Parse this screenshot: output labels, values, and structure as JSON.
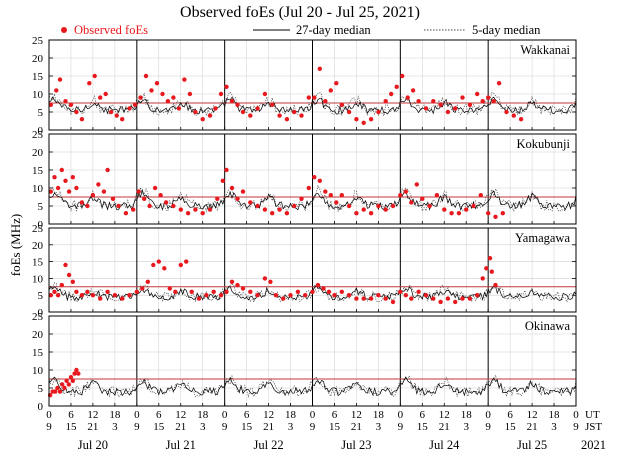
{
  "chart_data": {
    "type": "scatter",
    "title": "Observed foEs (Jul 20 - Jul 25, 2021)",
    "ylabel": "foEs (MHz)",
    "ylim": [
      0,
      25
    ],
    "yticks": [
      0,
      5,
      10,
      15,
      20,
      25
    ],
    "reference_line_mhz": 7.5,
    "legend": {
      "observed": "Observed foEs",
      "median27": "27-day median",
      "median5": "5-day median"
    },
    "colors": {
      "observed": "#e8191e",
      "median27": "#000000",
      "median5": "#444444",
      "reference": "#c0393b",
      "grid": "#cfcfcf",
      "day_line": "#000000"
    },
    "hours_range": [
      0,
      144
    ],
    "ut_tick_labels": [
      "0",
      "6",
      "12",
      "18",
      "0",
      "6",
      "12",
      "18",
      "0",
      "6",
      "12",
      "18",
      "0",
      "6",
      "12",
      "18",
      "0",
      "6",
      "12",
      "18",
      "0",
      "6",
      "12",
      "18",
      "0"
    ],
    "jst_tick_labels": [
      "9",
      "15",
      "21",
      "3",
      "9",
      "15",
      "21",
      "3",
      "9",
      "15",
      "21",
      "3",
      "9",
      "15",
      "21",
      "3",
      "9",
      "15",
      "21",
      "3",
      "9",
      "15",
      "21",
      "3",
      "9"
    ],
    "ut_label": "UT",
    "jst_label": "JST",
    "days": [
      "Jul 20",
      "Jul 21",
      "Jul 22",
      "Jul 23",
      "Jul 24",
      "Jul 25"
    ],
    "year": "2021",
    "stations": [
      {
        "name": "Wakkanai",
        "observed_hours": [
          0,
          144
        ],
        "median_base": 5.5,
        "median_amp": 3.0,
        "obs_points": [
          [
            0.5,
            7
          ],
          [
            2,
            11
          ],
          [
            3,
            14
          ],
          [
            4.5,
            8
          ],
          [
            6,
            7
          ],
          [
            7.5,
            5
          ],
          [
            9,
            3
          ],
          [
            11,
            13
          ],
          [
            12.5,
            15
          ],
          [
            14,
            9
          ],
          [
            15.5,
            10
          ],
          [
            17,
            5
          ],
          [
            18.5,
            4
          ],
          [
            20,
            3
          ],
          [
            22,
            6
          ],
          [
            23.5,
            7
          ],
          [
            25,
            9
          ],
          [
            26.5,
            15
          ],
          [
            28,
            11
          ],
          [
            29.5,
            13
          ],
          [
            31,
            10
          ],
          [
            32.5,
            8
          ],
          [
            34,
            9
          ],
          [
            35.5,
            6
          ],
          [
            37,
            14
          ],
          [
            38.5,
            10
          ],
          [
            40,
            5
          ],
          [
            42,
            3
          ],
          [
            44,
            4
          ],
          [
            45.5,
            6
          ],
          [
            47,
            10
          ],
          [
            48.5,
            12
          ],
          [
            50,
            8
          ],
          [
            51.5,
            7
          ],
          [
            53,
            5
          ],
          [
            55,
            4
          ],
          [
            57,
            6
          ],
          [
            59,
            10
          ],
          [
            61,
            7
          ],
          [
            63,
            4
          ],
          [
            65,
            3
          ],
          [
            67,
            5
          ],
          [
            69,
            4
          ],
          [
            71,
            9
          ],
          [
            72.5,
            9
          ],
          [
            74,
            17
          ],
          [
            75.5,
            8
          ],
          [
            77,
            11
          ],
          [
            78.5,
            13
          ],
          [
            80,
            7
          ],
          [
            82,
            5
          ],
          [
            84,
            3
          ],
          [
            86,
            2
          ],
          [
            88,
            3
          ],
          [
            90,
            5
          ],
          [
            92,
            8
          ],
          [
            93.5,
            10
          ],
          [
            95,
            12
          ],
          [
            96.5,
            15
          ],
          [
            98,
            9
          ],
          [
            99.5,
            11
          ],
          [
            101,
            8
          ],
          [
            103,
            6
          ],
          [
            105,
            8
          ],
          [
            107,
            7
          ],
          [
            109,
            5
          ],
          [
            111,
            6
          ],
          [
            113,
            9
          ],
          [
            115,
            7
          ],
          [
            117,
            10
          ],
          [
            118.5,
            8
          ],
          [
            120,
            9
          ],
          [
            121.5,
            8
          ],
          [
            123,
            13
          ],
          [
            125,
            5
          ],
          [
            127,
            4
          ],
          [
            129,
            3
          ]
        ]
      },
      {
        "name": "Kokubunji",
        "observed_hours": [
          0,
          144
        ],
        "median_base": 5.0,
        "median_amp": 3.5,
        "obs_points": [
          [
            0.5,
            9
          ],
          [
            1.5,
            13
          ],
          [
            2.5,
            10
          ],
          [
            3.5,
            15
          ],
          [
            4.5,
            12
          ],
          [
            5.5,
            9
          ],
          [
            6.5,
            13
          ],
          [
            7.5,
            10
          ],
          [
            9,
            6
          ],
          [
            10.5,
            5
          ],
          [
            12,
            8
          ],
          [
            13.5,
            11
          ],
          [
            15,
            9
          ],
          [
            16,
            15
          ],
          [
            17.5,
            7
          ],
          [
            19,
            5
          ],
          [
            21,
            3
          ],
          [
            23,
            4
          ],
          [
            24.5,
            9
          ],
          [
            26,
            7
          ],
          [
            27.5,
            5
          ],
          [
            29,
            10
          ],
          [
            30.5,
            8
          ],
          [
            32,
            6
          ],
          [
            34,
            5
          ],
          [
            36,
            4
          ],
          [
            38,
            3
          ],
          [
            40,
            4
          ],
          [
            42,
            3
          ],
          [
            44,
            4
          ],
          [
            46,
            7
          ],
          [
            47.5,
            12
          ],
          [
            48.5,
            15
          ],
          [
            50,
            10
          ],
          [
            51.5,
            7
          ],
          [
            53,
            9
          ],
          [
            55,
            6
          ],
          [
            57,
            5
          ],
          [
            59,
            4
          ],
          [
            61,
            3
          ],
          [
            63,
            4
          ],
          [
            65,
            3
          ],
          [
            67,
            5
          ],
          [
            69,
            7
          ],
          [
            71,
            10
          ],
          [
            72.5,
            13
          ],
          [
            74,
            12
          ],
          [
            75.5,
            9
          ],
          [
            77,
            8
          ],
          [
            78.5,
            6
          ],
          [
            80,
            8
          ],
          [
            82,
            5
          ],
          [
            84,
            3
          ],
          [
            86,
            4
          ],
          [
            88,
            3
          ],
          [
            90,
            5
          ],
          [
            92,
            4
          ],
          [
            94,
            5
          ],
          [
            96,
            8
          ],
          [
            97.5,
            9
          ],
          [
            99,
            6
          ],
          [
            100.5,
            11
          ],
          [
            102,
            7
          ],
          [
            104,
            5
          ],
          [
            106,
            8
          ],
          [
            108,
            4
          ],
          [
            110,
            3
          ],
          [
            112,
            3
          ],
          [
            114,
            4
          ],
          [
            116,
            5
          ],
          [
            118,
            8
          ],
          [
            120,
            3
          ],
          [
            122,
            2
          ],
          [
            124,
            3
          ]
        ]
      },
      {
        "name": "Yamagawa",
        "observed_hours": [
          0,
          144
        ],
        "median_base": 4.5,
        "median_amp": 2.5,
        "obs_points": [
          [
            0.5,
            5
          ],
          [
            1.5,
            6
          ],
          [
            2.5,
            5
          ],
          [
            3.5,
            8
          ],
          [
            4.5,
            14
          ],
          [
            5.5,
            11
          ],
          [
            6.5,
            9
          ],
          [
            7.5,
            6
          ],
          [
            9,
            5
          ],
          [
            10.5,
            6
          ],
          [
            12,
            5
          ],
          [
            14,
            4
          ],
          [
            16,
            6
          ],
          [
            18,
            5
          ],
          [
            20,
            4
          ],
          [
            22,
            5
          ],
          [
            24,
            6
          ],
          [
            25.5,
            7
          ],
          [
            27,
            9
          ],
          [
            28.5,
            14
          ],
          [
            30,
            15
          ],
          [
            31.5,
            13
          ],
          [
            33,
            7
          ],
          [
            34.5,
            6
          ],
          [
            36,
            14
          ],
          [
            37.5,
            15
          ],
          [
            39,
            6
          ],
          [
            41,
            4
          ],
          [
            43,
            5
          ],
          [
            45,
            6
          ],
          [
            47,
            5
          ],
          [
            48.5,
            6
          ],
          [
            50,
            9
          ],
          [
            51.5,
            8
          ],
          [
            53,
            7
          ],
          [
            55,
            6
          ],
          [
            57,
            5
          ],
          [
            59,
            10
          ],
          [
            60.5,
            9
          ],
          [
            62,
            5
          ],
          [
            64,
            4
          ],
          [
            66,
            5
          ],
          [
            68,
            6
          ],
          [
            70,
            5
          ],
          [
            72,
            6
          ],
          [
            73.5,
            8
          ],
          [
            75,
            7
          ],
          [
            76.5,
            6
          ],
          [
            78,
            5
          ],
          [
            80,
            6
          ],
          [
            82,
            5
          ],
          [
            84,
            4
          ],
          [
            86,
            4
          ],
          [
            88,
            4
          ],
          [
            90,
            5
          ],
          [
            92,
            4
          ],
          [
            94,
            3
          ],
          [
            96,
            6
          ],
          [
            97.5,
            5
          ],
          [
            99,
            4
          ],
          [
            101,
            6
          ],
          [
            103,
            5
          ],
          [
            105,
            4
          ],
          [
            107,
            3
          ],
          [
            109,
            4
          ],
          [
            111,
            3
          ],
          [
            113,
            4
          ],
          [
            115,
            4
          ],
          [
            117,
            5
          ],
          [
            118.5,
            10
          ],
          [
            119.5,
            13
          ],
          [
            120.5,
            16
          ],
          [
            121,
            12
          ],
          [
            122,
            8
          ]
        ]
      },
      {
        "name": "Okinawa",
        "observed_hours": [
          0,
          8
        ],
        "median_base": 4.0,
        "median_amp": 3.0,
        "obs_points": [
          [
            0.3,
            3
          ],
          [
            1,
            4
          ],
          [
            1.7,
            4
          ],
          [
            2.3,
            5
          ],
          [
            3,
            4
          ],
          [
            3.6,
            6
          ],
          [
            4.2,
            5
          ],
          [
            4.8,
            7
          ],
          [
            5.4,
            6
          ],
          [
            6,
            8
          ],
          [
            6.5,
            7
          ],
          [
            7,
            9
          ],
          [
            7.5,
            10
          ],
          [
            8,
            9
          ]
        ]
      }
    ]
  }
}
